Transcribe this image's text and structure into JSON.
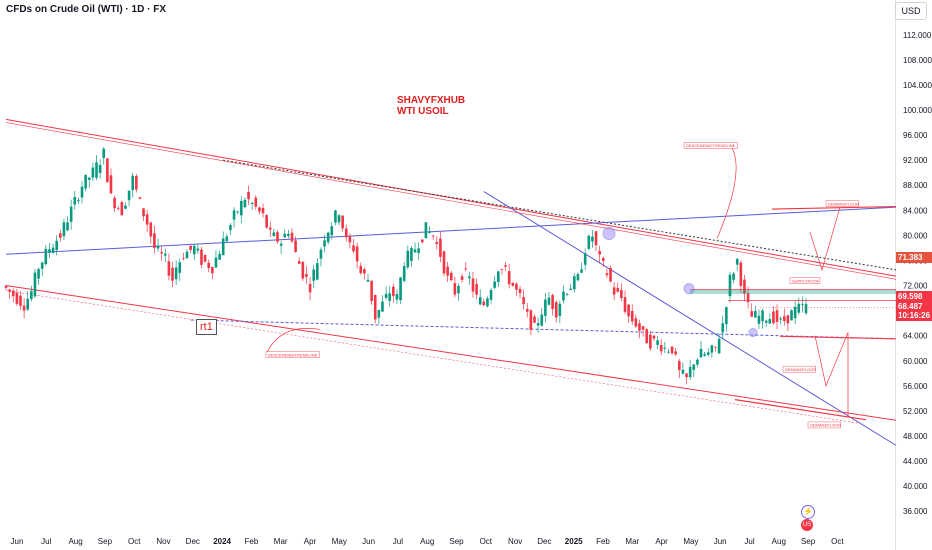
{
  "header": {
    "title": "CFDs on Crude Oil (WTI) · 1D · FX",
    "currency": "USD"
  },
  "watermark": {
    "line1": "SHAVYFXHUB",
    "line2": "WTI USOIL"
  },
  "annotations": {
    "rt1": "rt1",
    "descending_trendline_1": "DESCENDINGTRENDLINE",
    "descending_trendline_2": "DESCENDINGTRENDLINE",
    "supply_roof": "SUPPLYROOF",
    "demand_floor_1": "DEMANDFLOOR",
    "demand_floor_2": "DEMANDFLOOR",
    "demand_floor_3": "DEMANDFLOOR"
  },
  "price_tags": {
    "tag1": {
      "value": "71.383",
      "color": "#e5533d"
    },
    "tag2": {
      "value": "69.598",
      "color": "#f23645"
    },
    "tag3": {
      "value": "68.487",
      "time": "10:16:26",
      "color": "#f23645"
    }
  },
  "colors": {
    "up": "#089981",
    "down": "#f23645",
    "trend_red": "#f23645",
    "trend_blue": "#5b5bd6"
  },
  "icons": [
    "lightning-icon",
    "us-flag-icon"
  ],
  "chart_data": {
    "type": "candlestick",
    "title": "CFDs on Crude Oil (WTI) · 1D · FX",
    "y_ticks": [
      "112.000",
      "108.000",
      "104.000",
      "100.000",
      "96.000",
      "92.000",
      "88.000",
      "84.000",
      "80.000",
      "76.000",
      "72.000",
      "68.000",
      "64.000",
      "60.000",
      "56.000",
      "52.000",
      "48.000",
      "44.000",
      "40.000",
      "36.000"
    ],
    "ylim": [
      33,
      115
    ],
    "x_ticks": [
      {
        "label": "Jun",
        "bold": false
      },
      {
        "label": "Jul",
        "bold": false
      },
      {
        "label": "Aug",
        "bold": false
      },
      {
        "label": "Sep",
        "bold": false
      },
      {
        "label": "Oct",
        "bold": false
      },
      {
        "label": "Nov",
        "bold": false
      },
      {
        "label": "Dec",
        "bold": false
      },
      {
        "label": "2024",
        "bold": true
      },
      {
        "label": "Feb",
        "bold": false
      },
      {
        "label": "Mar",
        "bold": false
      },
      {
        "label": "Apr",
        "bold": false
      },
      {
        "label": "May",
        "bold": false
      },
      {
        "label": "Jun",
        "bold": false
      },
      {
        "label": "Jul",
        "bold": false
      },
      {
        "label": "Aug",
        "bold": false
      },
      {
        "label": "Sep",
        "bold": false
      },
      {
        "label": "Oct",
        "bold": false
      },
      {
        "label": "Nov",
        "bold": false
      },
      {
        "label": "Dec",
        "bold": false
      },
      {
        "label": "2025",
        "bold": true
      },
      {
        "label": "Feb",
        "bold": false
      },
      {
        "label": "Mar",
        "bold": false
      },
      {
        "label": "Apr",
        "bold": false
      },
      {
        "label": "May",
        "bold": false
      },
      {
        "label": "Jun",
        "bold": false
      },
      {
        "label": "Jul",
        "bold": false
      },
      {
        "label": "Aug",
        "bold": false
      },
      {
        "label": "Sep",
        "bold": false
      },
      {
        "label": "Oct",
        "bold": false
      }
    ],
    "price_path": [
      [
        0,
        72
      ],
      [
        3,
        70.5
      ],
      [
        6,
        69
      ],
      [
        8,
        71
      ],
      [
        10,
        75
      ],
      [
        13,
        78
      ],
      [
        16,
        80
      ],
      [
        19,
        84
      ],
      [
        22,
        88
      ],
      [
        25,
        90
      ],
      [
        28,
        93
      ],
      [
        30,
        86
      ],
      [
        33,
        84
      ],
      [
        36,
        89
      ],
      [
        38,
        85
      ],
      [
        40,
        82
      ],
      [
        42,
        78
      ],
      [
        45,
        76
      ],
      [
        47,
        73
      ],
      [
        48,
        75
      ],
      [
        50,
        77
      ],
      [
        53,
        78
      ],
      [
        55,
        76
      ],
      [
        58,
        75
      ],
      [
        61,
        79
      ],
      [
        64,
        83
      ],
      [
        67,
        86
      ],
      [
        69,
        85
      ],
      [
        72,
        83
      ],
      [
        74,
        80
      ],
      [
        77,
        79
      ],
      [
        79,
        81
      ],
      [
        81,
        77
      ],
      [
        83,
        74
      ],
      [
        85,
        72
      ],
      [
        87,
        76
      ],
      [
        89,
        80
      ],
      [
        91,
        82
      ],
      [
        93,
        84
      ],
      [
        95,
        79
      ],
      [
        97,
        78
      ],
      [
        99,
        74
      ],
      [
        101,
        73
      ],
      [
        103,
        67
      ],
      [
        105,
        69
      ],
      [
        107,
        71
      ],
      [
        109,
        70
      ],
      [
        111,
        76
      ],
      [
        113,
        77
      ],
      [
        115,
        79
      ],
      [
        117,
        81
      ],
      [
        119,
        80
      ],
      [
        121,
        77
      ],
      [
        123,
        73
      ],
      [
        125,
        71
      ],
      [
        127,
        74
      ],
      [
        129,
        73
      ],
      [
        131,
        70
      ],
      [
        133,
        69
      ],
      [
        135,
        72
      ],
      [
        137,
        75
      ],
      [
        139,
        74
      ],
      [
        141,
        72
      ],
      [
        143,
        70
      ],
      [
        145,
        67
      ],
      [
        147,
        65
      ],
      [
        149,
        68
      ],
      [
        151,
        70
      ],
      [
        153,
        68
      ],
      [
        155,
        71
      ],
      [
        157,
        72
      ],
      [
        159,
        73
      ],
      [
        161,
        78
      ],
      [
        163,
        80
      ],
      [
        165,
        76
      ],
      [
        167,
        74
      ],
      [
        169,
        71
      ],
      [
        171,
        70
      ],
      [
        173,
        67
      ],
      [
        175,
        66
      ],
      [
        177,
        64
      ],
      [
        179,
        63
      ],
      [
        181,
        63
      ],
      [
        183,
        62
      ],
      [
        185,
        62
      ],
      [
        187,
        58
      ],
      [
        189,
        57
      ],
      [
        191,
        60
      ],
      [
        193,
        61
      ],
      [
        195,
        61
      ],
      [
        197,
        62
      ],
      [
        199,
        66
      ],
      [
        201,
        73
      ],
      [
        203,
        76
      ],
      [
        205,
        70
      ],
      [
        207,
        67
      ],
      [
        209,
        67
      ],
      [
        211,
        67
      ],
      [
        213,
        67
      ],
      [
        215,
        66
      ],
      [
        217,
        67
      ],
      [
        219,
        68
      ],
      [
        221,
        68.5
      ]
    ],
    "series": [
      {
        "name": "",
        "description": "daily candles"
      }
    ],
    "trendlines": [
      {
        "id": "descending-upper-red",
        "color": "#f23645",
        "from": [
          0,
          98.5
        ],
        "to": [
          221,
          73.5
        ]
      },
      {
        "id": "descending-upper-black-dotted",
        "color": "#333333",
        "from": [
          60,
          92
        ],
        "to": [
          221,
          74.5
        ]
      },
      {
        "id": "ascending-blue",
        "color": "#5b5bd6",
        "from": [
          0,
          77
        ],
        "to": [
          221,
          84.5
        ]
      },
      {
        "id": "lower-red",
        "color": "#f23645",
        "from": [
          0,
          72
        ],
        "to": [
          221,
          50.5
        ]
      },
      {
        "id": "blue-channel-lower",
        "color": "#5b5bd6",
        "from": [
          51,
          66.5
        ],
        "to": [
          221,
          63.5
        ]
      },
      {
        "id": "blue-diagonal",
        "color": "#5b5bd6",
        "from": [
          132,
          87
        ],
        "to": [
          221,
          46.5
        ]
      }
    ],
    "grid": false,
    "legend": "none"
  }
}
